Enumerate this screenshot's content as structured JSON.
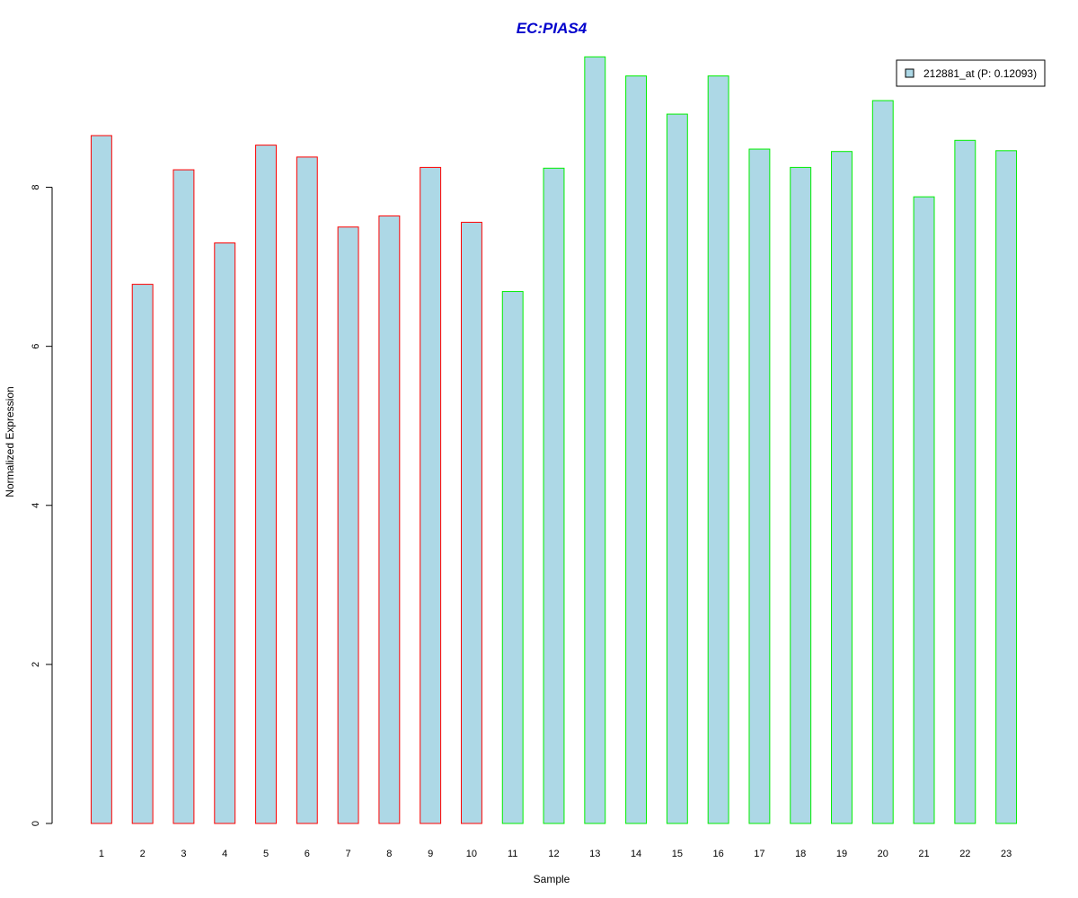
{
  "colors": {
    "title": "#0000cc",
    "bar_fill": "#add8e6",
    "group_a_border": "#ff0000",
    "group_b_border": "#00ee00",
    "axis": "#000000"
  },
  "chart_data": {
    "type": "bar",
    "title": "EC:PIAS4",
    "xlabel": "Sample",
    "ylabel": "Normalized Expression",
    "ylim": [
      0,
      9.7
    ],
    "yticks": [
      0,
      2,
      4,
      6,
      8
    ],
    "grid": false,
    "legend_position": "top-right",
    "categories": [
      "1",
      "2",
      "3",
      "4",
      "5",
      "6",
      "7",
      "8",
      "9",
      "10",
      "11",
      "12",
      "13",
      "14",
      "15",
      "16",
      "17",
      "18",
      "19",
      "20",
      "21",
      "22",
      "23"
    ],
    "series": [
      {
        "name": "212881_at (P: 0.12093)",
        "values": [
          8.65,
          6.78,
          8.22,
          7.3,
          8.53,
          8.38,
          7.5,
          7.64,
          8.25,
          7.56,
          6.69,
          8.24,
          9.64,
          9.4,
          8.92,
          9.4,
          8.48,
          8.25,
          8.45,
          9.09,
          7.88,
          8.59,
          8.46
        ],
        "groups": [
          "a",
          "a",
          "a",
          "a",
          "a",
          "a",
          "a",
          "a",
          "a",
          "a",
          "b",
          "b",
          "b",
          "b",
          "b",
          "b",
          "b",
          "b",
          "b",
          "b",
          "b",
          "b",
          "b"
        ]
      }
    ]
  }
}
